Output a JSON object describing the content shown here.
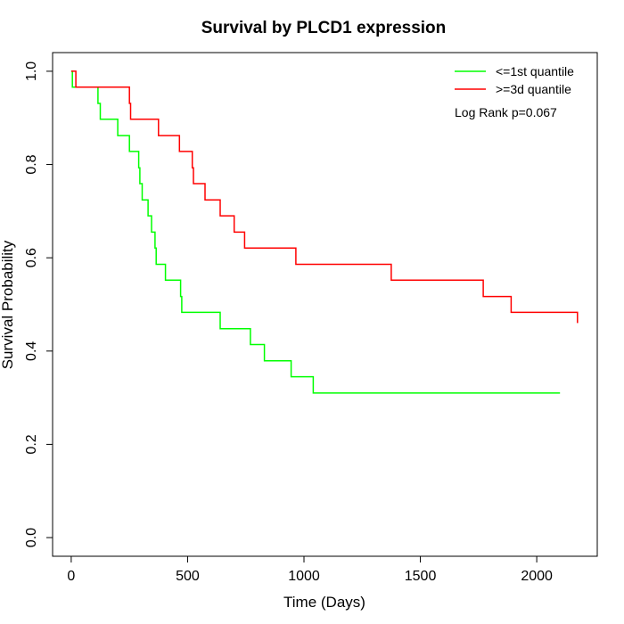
{
  "chart_data": {
    "type": "line",
    "title": "Survival by PLCD1 expression",
    "xlabel": "Time (Days)",
    "ylabel": "Survival Probability",
    "xlim": [
      -80,
      2260
    ],
    "ylim": [
      -0.04,
      1.04
    ],
    "x_ticks": [
      0,
      500,
      1000,
      1500,
      2000
    ],
    "x_tick_labels": [
      "0",
      "500",
      "1000",
      "1500",
      "2000"
    ],
    "y_ticks": [
      0.0,
      0.2,
      0.4,
      0.6,
      0.8,
      1.0
    ],
    "y_tick_labels": [
      "0.0",
      "0.2",
      "0.4",
      "0.6",
      "0.8",
      "1.0"
    ],
    "grid": false,
    "legend_position": "top-right",
    "annotation": "Log Rank p=0.067",
    "series": [
      {
        "name": "<=1st quantile",
        "color": "#00ff00",
        "step": true,
        "x": [
          0,
          5,
          115,
          125,
          200,
          250,
          290,
          295,
          305,
          330,
          345,
          360,
          365,
          375,
          405,
          470,
          475,
          640,
          770,
          830,
          945,
          1040,
          2100
        ],
        "y": [
          1.0,
          0.966,
          0.931,
          0.897,
          0.862,
          0.828,
          0.793,
          0.759,
          0.724,
          0.69,
          0.655,
          0.621,
          0.586,
          0.586,
          0.552,
          0.517,
          0.483,
          0.448,
          0.414,
          0.379,
          0.345,
          0.31,
          0.31
        ]
      },
      {
        "name": ">=3d quantile",
        "color": "#ff0000",
        "step": true,
        "x": [
          0,
          20,
          250,
          255,
          375,
          465,
          520,
          525,
          575,
          640,
          700,
          745,
          965,
          1375,
          1770,
          1890,
          2175
        ],
        "y": [
          1.0,
          0.966,
          0.931,
          0.897,
          0.862,
          0.828,
          0.793,
          0.759,
          0.724,
          0.69,
          0.655,
          0.621,
          0.586,
          0.552,
          0.517,
          0.483,
          0.46
        ]
      }
    ]
  }
}
